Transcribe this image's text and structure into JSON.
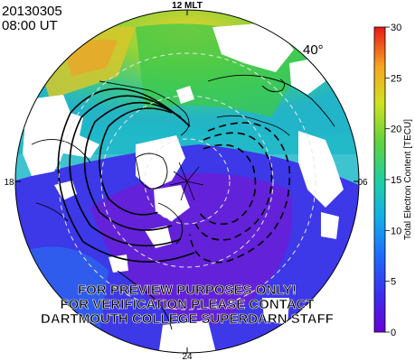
{
  "header": {
    "date": "20130305",
    "time": "08:00  UT"
  },
  "map": {
    "mlt_top": "12 MLT",
    "mlt_left": "18",
    "mlt_right": "06",
    "mlt_bottom": "24",
    "latitude_label": "40°"
  },
  "colorbar": {
    "title": "Total Electron Content [TECU]",
    "ticks": [
      "30",
      "25",
      "20",
      "15",
      "10",
      "5",
      "0"
    ],
    "min": 0,
    "max": 30
  },
  "watermark": {
    "line1": "FOR PREVIEW PURPOSES ONLY!",
    "line2": "FOR VERIFICATION PLEASE CONTACT",
    "line3": "DARTMOUTH COLLEGE SUPERDARN STAFF"
  },
  "colors": {
    "low": "#6a1fd6",
    "mid_low": "#2a5cff",
    "mid": "#22b3c4",
    "mid_high": "#3cc84a",
    "high": "#f0d020",
    "max": "#e0201a"
  }
}
